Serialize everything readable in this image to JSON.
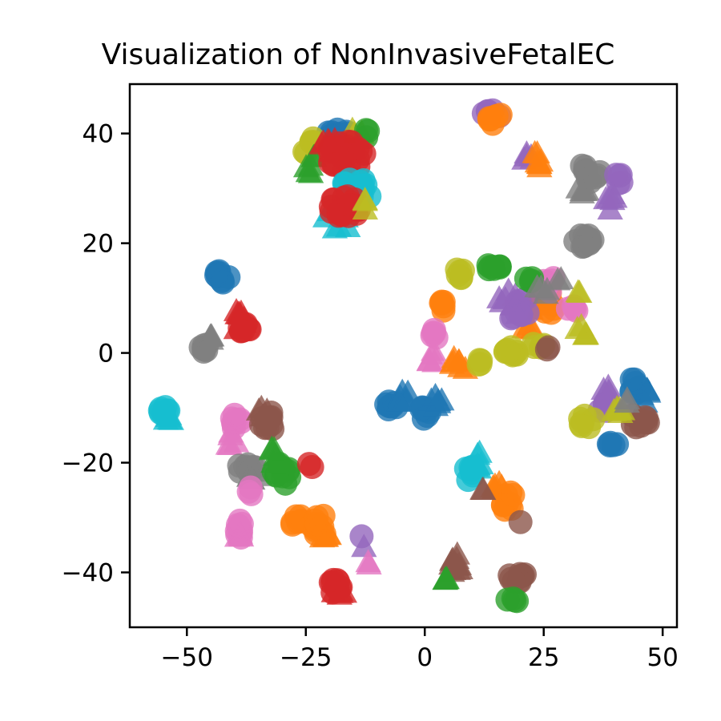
{
  "chart_data": {
    "type": "scatter",
    "title": "Visualization of NonInvasiveFetalEC",
    "xlabel": "",
    "ylabel": "",
    "xlim": [
      -62,
      53
    ],
    "ylim": [
      -50,
      49
    ],
    "x_ticks": [
      -50,
      -25,
      0,
      25,
      50
    ],
    "x_tick_labels": [
      "−50",
      "−25",
      "0",
      "25",
      "50"
    ],
    "y_ticks": [
      -40,
      -20,
      0,
      20,
      40
    ],
    "y_tick_labels": [
      "−40",
      "−20",
      "0",
      "20",
      "40"
    ],
    "grid": false,
    "legend": "none",
    "marker_opacity": 0.8,
    "palette": {
      "blue": "#1f77b4",
      "orange": "#ff7f0e",
      "green": "#2ca02c",
      "red": "#d62728",
      "purple": "#9467bd",
      "brown": "#8c564b",
      "pink": "#e377c2",
      "gray": "#7f7f7f",
      "olive": "#bcbd22",
      "cyan": "#17becf"
    },
    "clusters": [
      {
        "color": "blue",
        "marker": "circle",
        "cx": -18.5,
        "cy": 40,
        "rx": 2.5,
        "ry": 1.2,
        "n": 10
      },
      {
        "color": "olive",
        "marker": "circle",
        "cx": -24,
        "cy": 37.5,
        "rx": 1.5,
        "ry": 2,
        "n": 6
      },
      {
        "color": "olive",
        "marker": "triangle",
        "cx": -14.5,
        "cy": 40,
        "rx": 2,
        "ry": 1,
        "n": 5
      },
      {
        "color": "green",
        "marker": "triangle",
        "cx": -23.5,
        "cy": 34,
        "rx": 1.5,
        "ry": 2,
        "n": 6
      },
      {
        "color": "green",
        "marker": "circle",
        "cx": -12,
        "cy": 40,
        "rx": 1.2,
        "ry": 0.8,
        "n": 3
      },
      {
        "color": "red",
        "marker": "circle",
        "cx": -16.5,
        "cy": 36,
        "rx": 4,
        "ry": 3,
        "n": 26
      },
      {
        "color": "red",
        "marker": "triangle",
        "cx": -20,
        "cy": 37.5,
        "rx": 2,
        "ry": 1.5,
        "n": 6
      },
      {
        "color": "cyan",
        "marker": "circle",
        "cx": -14,
        "cy": 30,
        "rx": 3.5,
        "ry": 2,
        "n": 16
      },
      {
        "color": "cyan",
        "marker": "triangle",
        "cx": -18,
        "cy": 25,
        "rx": 3,
        "ry": 3,
        "n": 10
      },
      {
        "color": "red",
        "marker": "circle",
        "cx": -17,
        "cy": 26.5,
        "rx": 3.5,
        "ry": 2.5,
        "n": 20
      },
      {
        "color": "olive",
        "marker": "triangle",
        "cx": -13,
        "cy": 26.5,
        "rx": 1,
        "ry": 1.5,
        "n": 3
      },
      {
        "color": "purple",
        "marker": "circle",
        "cx": 14,
        "cy": 43.5,
        "rx": 2,
        "ry": 0.8,
        "n": 6
      },
      {
        "color": "orange",
        "marker": "circle",
        "cx": 15,
        "cy": 42.5,
        "rx": 1.5,
        "ry": 1.2,
        "n": 7
      },
      {
        "color": "purple",
        "marker": "triangle",
        "cx": 21.5,
        "cy": 35.5,
        "rx": 1.2,
        "ry": 1.5,
        "n": 5
      },
      {
        "color": "orange",
        "marker": "triangle",
        "cx": 23.5,
        "cy": 34.5,
        "rx": 1,
        "ry": 2,
        "n": 7
      },
      {
        "color": "gray",
        "marker": "circle",
        "cx": 35,
        "cy": 33,
        "rx": 2.5,
        "ry": 2,
        "n": 10
      },
      {
        "color": "gray",
        "marker": "triangle",
        "cx": 34,
        "cy": 30,
        "rx": 2,
        "ry": 1.5,
        "n": 5
      },
      {
        "color": "purple",
        "marker": "circle",
        "cx": 40.5,
        "cy": 32,
        "rx": 1.2,
        "ry": 1.5,
        "n": 5
      },
      {
        "color": "purple",
        "marker": "triangle",
        "cx": 39,
        "cy": 27.5,
        "rx": 1,
        "ry": 2,
        "n": 6
      },
      {
        "color": "gray",
        "marker": "circle",
        "cx": 33,
        "cy": 20.5,
        "rx": 2.5,
        "ry": 1.5,
        "n": 12
      },
      {
        "color": "blue",
        "marker": "circle",
        "cx": -42.5,
        "cy": 14,
        "rx": 1.5,
        "ry": 1.2,
        "n": 10
      },
      {
        "color": "red",
        "marker": "triangle",
        "cx": -39,
        "cy": 6,
        "rx": 1.5,
        "ry": 2,
        "n": 8
      },
      {
        "color": "red",
        "marker": "circle",
        "cx": -38,
        "cy": 5,
        "rx": 1.5,
        "ry": 1.5,
        "n": 8
      },
      {
        "color": "gray",
        "marker": "circle",
        "cx": -46.5,
        "cy": 1,
        "rx": 1.2,
        "ry": 0.8,
        "n": 8
      },
      {
        "color": "gray",
        "marker": "triangle",
        "cx": -45,
        "cy": 3,
        "rx": 1,
        "ry": 1,
        "n": 4
      },
      {
        "color": "olive",
        "marker": "circle",
        "cx": 7.5,
        "cy": 14,
        "rx": 1,
        "ry": 2,
        "n": 6
      },
      {
        "color": "green",
        "marker": "circle",
        "cx": 14,
        "cy": 15.5,
        "rx": 2,
        "ry": 0.8,
        "n": 8
      },
      {
        "color": "orange",
        "marker": "circle",
        "cx": 3.5,
        "cy": 8.5,
        "rx": 1,
        "ry": 1,
        "n": 6
      },
      {
        "color": "orange",
        "marker": "circle",
        "cx": 25,
        "cy": 9,
        "rx": 2.5,
        "ry": 3.5,
        "n": 14
      },
      {
        "color": "orange",
        "marker": "triangle",
        "cx": 22,
        "cy": 6,
        "rx": 2,
        "ry": 2,
        "n": 6
      },
      {
        "color": "purple",
        "marker": "triangle",
        "cx": 18,
        "cy": 10,
        "rx": 2.5,
        "ry": 4,
        "n": 12
      },
      {
        "color": "purple",
        "marker": "circle",
        "cx": 20,
        "cy": 8,
        "rx": 2.5,
        "ry": 3,
        "n": 10
      },
      {
        "color": "pink",
        "marker": "circle",
        "cx": 26,
        "cy": 12,
        "rx": 2,
        "ry": 2,
        "n": 8
      },
      {
        "color": "pink",
        "marker": "circle",
        "cx": 31,
        "cy": 8,
        "rx": 1.2,
        "ry": 1,
        "n": 4
      },
      {
        "color": "green",
        "marker": "circle",
        "cx": 22,
        "cy": 13.5,
        "rx": 1,
        "ry": 0.8,
        "n": 4
      },
      {
        "color": "gray",
        "marker": "triangle",
        "cx": 24.5,
        "cy": 11,
        "rx": 1.5,
        "ry": 2,
        "n": 4
      },
      {
        "color": "gray",
        "marker": "triangle",
        "cx": 28,
        "cy": 13.5,
        "rx": 0.8,
        "ry": 0.8,
        "n": 2
      },
      {
        "color": "olive",
        "marker": "triangle",
        "cx": 32.5,
        "cy": 11.5,
        "rx": 0.8,
        "ry": 1,
        "n": 2
      },
      {
        "color": "olive",
        "marker": "triangle",
        "cx": 33,
        "cy": 4,
        "rx": 1.5,
        "ry": 1.2,
        "n": 5
      },
      {
        "color": "pink",
        "marker": "circle",
        "cx": 2,
        "cy": 3.5,
        "rx": 1,
        "ry": 0.8,
        "n": 5
      },
      {
        "color": "pink",
        "marker": "triangle",
        "cx": 1.5,
        "cy": -1,
        "rx": 0.8,
        "ry": 1.5,
        "n": 5
      },
      {
        "color": "orange",
        "marker": "triangle",
        "cx": 7,
        "cy": -2,
        "rx": 2,
        "ry": 1.5,
        "n": 7
      },
      {
        "color": "olive",
        "marker": "circle",
        "cx": 11,
        "cy": -1.5,
        "rx": 1,
        "ry": 0.8,
        "n": 4
      },
      {
        "color": "olive",
        "marker": "circle",
        "cx": 18,
        "cy": 0,
        "rx": 2,
        "ry": 1.2,
        "n": 10
      },
      {
        "color": "olive",
        "marker": "circle",
        "cx": 24,
        "cy": 1.5,
        "rx": 1.2,
        "ry": 0.8,
        "n": 5
      },
      {
        "color": "brown",
        "marker": "circle",
        "cx": 26,
        "cy": 1,
        "rx": 0.8,
        "ry": 0.5,
        "n": 2
      },
      {
        "color": "blue",
        "marker": "circle",
        "cx": -7,
        "cy": -9.5,
        "rx": 1.5,
        "ry": 1,
        "n": 8
      },
      {
        "color": "blue",
        "marker": "triangle",
        "cx": -4.5,
        "cy": -8,
        "rx": 1.2,
        "ry": 1.5,
        "n": 6
      },
      {
        "color": "blue",
        "marker": "circle",
        "cx": 0,
        "cy": -11,
        "rx": 1.5,
        "ry": 1.2,
        "n": 8
      },
      {
        "color": "blue",
        "marker": "triangle",
        "cx": 2.5,
        "cy": -9,
        "rx": 1.2,
        "ry": 1.5,
        "n": 6
      },
      {
        "color": "purple",
        "marker": "triangle",
        "cx": 38,
        "cy": -7,
        "rx": 1.2,
        "ry": 1.5,
        "n": 6
      },
      {
        "color": "purple",
        "marker": "circle",
        "cx": 38,
        "cy": -10,
        "rx": 1.5,
        "ry": 1.2,
        "n": 6
      },
      {
        "color": "blue",
        "marker": "circle",
        "cx": 44,
        "cy": -6,
        "rx": 1.2,
        "ry": 1.5,
        "n": 7
      },
      {
        "color": "blue",
        "marker": "triangle",
        "cx": 46.5,
        "cy": -8,
        "rx": 1,
        "ry": 1.5,
        "n": 5
      },
      {
        "color": "brown",
        "marker": "circle",
        "cx": 45,
        "cy": -12.5,
        "rx": 2,
        "ry": 1.5,
        "n": 10
      },
      {
        "color": "olive",
        "marker": "triangle",
        "cx": 40.5,
        "cy": -10.5,
        "rx": 1.5,
        "ry": 1,
        "n": 6
      },
      {
        "color": "gray",
        "marker": "triangle",
        "cx": 42.5,
        "cy": -9,
        "rx": 0.8,
        "ry": 1,
        "n": 2
      },
      {
        "color": "olive",
        "marker": "circle",
        "cx": 34,
        "cy": -12.5,
        "rx": 1.5,
        "ry": 1.2,
        "n": 7
      },
      {
        "color": "blue",
        "marker": "circle",
        "cx": 39.5,
        "cy": -16.5,
        "rx": 1,
        "ry": 0.8,
        "n": 5
      },
      {
        "color": "cyan",
        "marker": "circle",
        "cx": -55,
        "cy": -10.5,
        "rx": 1.2,
        "ry": 1,
        "n": 8
      },
      {
        "color": "cyan",
        "marker": "triangle",
        "cx": -54,
        "cy": -12,
        "rx": 1,
        "ry": 1,
        "n": 5
      },
      {
        "color": "pink",
        "marker": "circle",
        "cx": -40,
        "cy": -12.5,
        "rx": 1.5,
        "ry": 1.5,
        "n": 8
      },
      {
        "color": "pink",
        "marker": "triangle",
        "cx": -40.5,
        "cy": -16,
        "rx": 1,
        "ry": 1.5,
        "n": 5
      },
      {
        "color": "brown",
        "marker": "circle",
        "cx": -33,
        "cy": -12.5,
        "rx": 1.5,
        "ry": 2,
        "n": 10
      },
      {
        "color": "brown",
        "marker": "triangle",
        "cx": -34,
        "cy": -11,
        "rx": 1,
        "ry": 1.2,
        "n": 4
      },
      {
        "color": "gray",
        "marker": "circle",
        "cx": -37.5,
        "cy": -21,
        "rx": 2,
        "ry": 1,
        "n": 10
      },
      {
        "color": "gray",
        "marker": "triangle",
        "cx": -36,
        "cy": -22.5,
        "rx": 1.5,
        "ry": 1,
        "n": 6
      },
      {
        "color": "green",
        "marker": "circle",
        "cx": -30,
        "cy": -22,
        "rx": 1.8,
        "ry": 2,
        "n": 12
      },
      {
        "color": "green",
        "marker": "triangle",
        "cx": -32,
        "cy": -19,
        "rx": 1.2,
        "ry": 1.5,
        "n": 5
      },
      {
        "color": "red",
        "marker": "circle",
        "cx": -24,
        "cy": -20.5,
        "rx": 0.6,
        "ry": 0.5,
        "n": 2
      },
      {
        "color": "pink",
        "marker": "circle",
        "cx": -36.5,
        "cy": -25,
        "rx": 0.8,
        "ry": 0.8,
        "n": 3
      },
      {
        "color": "pink",
        "marker": "circle",
        "cx": -38.5,
        "cy": -32,
        "rx": 1.2,
        "ry": 2,
        "n": 10
      },
      {
        "color": "pink",
        "marker": "triangle",
        "cx": -39,
        "cy": -33,
        "rx": 1,
        "ry": 1.2,
        "n": 4
      },
      {
        "color": "orange",
        "marker": "circle",
        "cx": -27,
        "cy": -30.5,
        "rx": 1.5,
        "ry": 1,
        "n": 7
      },
      {
        "color": "orange",
        "marker": "circle",
        "cx": -22,
        "cy": -31.5,
        "rx": 2,
        "ry": 2,
        "n": 12
      },
      {
        "color": "orange",
        "marker": "triangle",
        "cx": -21,
        "cy": -33.5,
        "rx": 1.5,
        "ry": 1,
        "n": 5
      },
      {
        "color": "purple",
        "marker": "circle",
        "cx": -13,
        "cy": -33.5,
        "rx": 0.3,
        "ry": 0.3,
        "n": 1
      },
      {
        "color": "purple",
        "marker": "triangle",
        "cx": -13,
        "cy": -35.5,
        "rx": 0.3,
        "ry": 0.3,
        "n": 1
      },
      {
        "color": "pink",
        "marker": "triangle",
        "cx": -12,
        "cy": -38.5,
        "rx": 0.5,
        "ry": 0.5,
        "n": 2
      },
      {
        "color": "red",
        "marker": "circle",
        "cx": -18.5,
        "cy": -42.5,
        "rx": 1.5,
        "ry": 2,
        "n": 10
      },
      {
        "color": "red",
        "marker": "triangle",
        "cx": -18,
        "cy": -43.5,
        "rx": 1.2,
        "ry": 1,
        "n": 5
      },
      {
        "color": "cyan",
        "marker": "circle",
        "cx": 9.5,
        "cy": -22,
        "rx": 1.2,
        "ry": 1.5,
        "n": 8
      },
      {
        "color": "cyan",
        "marker": "triangle",
        "cx": 11.5,
        "cy": -19.5,
        "rx": 1,
        "ry": 2,
        "n": 6
      },
      {
        "color": "orange",
        "marker": "triangle",
        "cx": 15,
        "cy": -24.5,
        "rx": 1.2,
        "ry": 1.2,
        "n": 5
      },
      {
        "color": "orange",
        "marker": "circle",
        "cx": 17.5,
        "cy": -27,
        "rx": 1.5,
        "ry": 2,
        "n": 9
      },
      {
        "color": "brown",
        "marker": "triangle",
        "cx": 12.5,
        "cy": -25,
        "rx": 0.6,
        "ry": 0.6,
        "n": 2
      },
      {
        "color": "brown",
        "marker": "circle",
        "cx": 20,
        "cy": -30.5,
        "rx": 0.4,
        "ry": 0.4,
        "n": 1
      },
      {
        "color": "brown",
        "marker": "triangle",
        "cx": 6.5,
        "cy": -38.5,
        "rx": 2,
        "ry": 2,
        "n": 12
      },
      {
        "color": "green",
        "marker": "triangle",
        "cx": 4.5,
        "cy": -41.5,
        "rx": 1,
        "ry": 0.6,
        "n": 4
      },
      {
        "color": "brown",
        "marker": "circle",
        "cx": 19.5,
        "cy": -41,
        "rx": 2,
        "ry": 1,
        "n": 10
      },
      {
        "color": "green",
        "marker": "circle",
        "cx": 18.5,
        "cy": -45,
        "rx": 1.2,
        "ry": 0.5,
        "n": 4
      }
    ]
  }
}
